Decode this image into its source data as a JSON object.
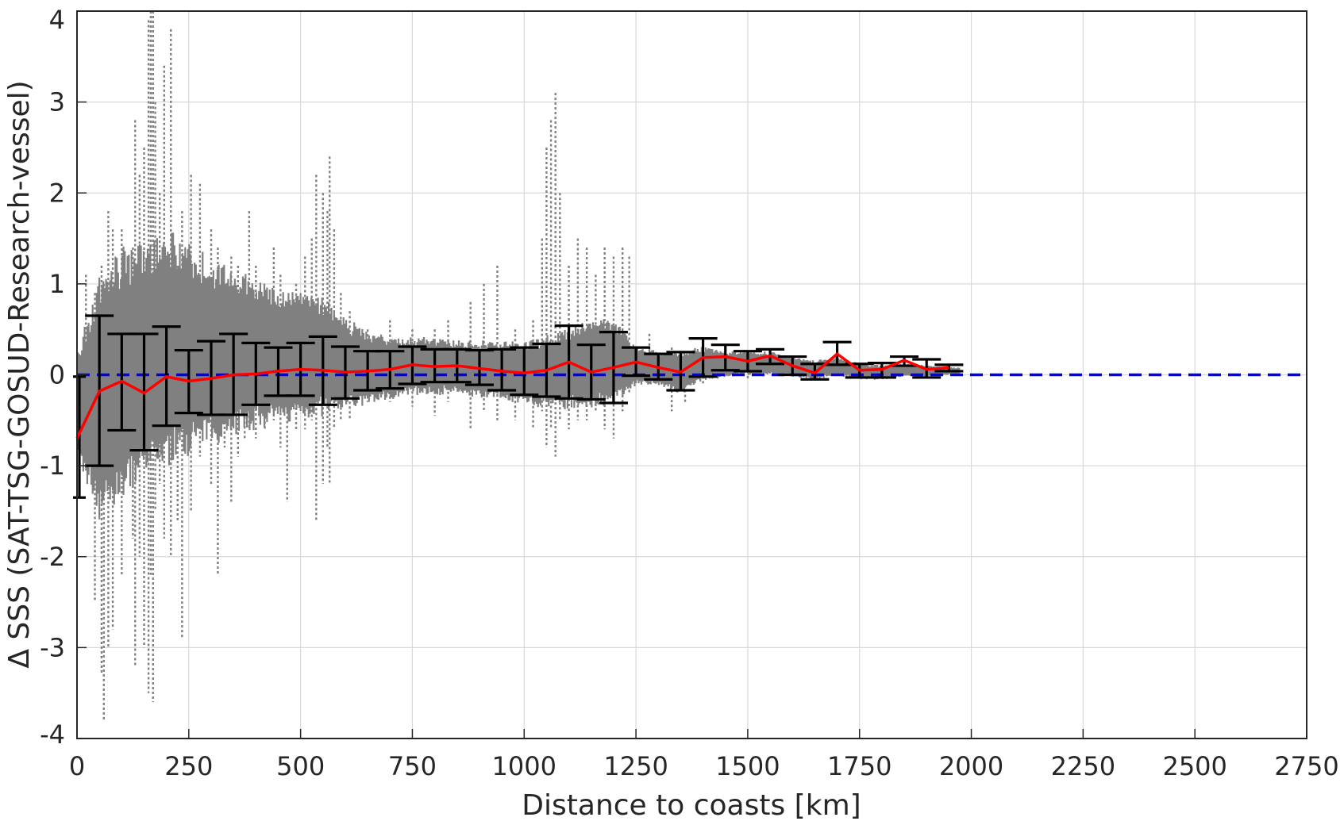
{
  "chart_data": {
    "type": "scatter",
    "xlabel": "Distance to coasts [km]",
    "ylabel": "Δ SSS (SAT-TSG-GOSUD-Research-vessel)",
    "xlim": [
      0,
      2750
    ],
    "ylim": [
      -4,
      4
    ],
    "xticks": [
      "0",
      "250",
      "500",
      "750",
      "1000",
      "1250",
      "1500",
      "1750",
      "2000",
      "2250",
      "2500",
      "2750"
    ],
    "yticks": [
      "4",
      "3",
      "2",
      "1",
      "0",
      "-1",
      "-2",
      "-3",
      "-4"
    ],
    "grid": true,
    "colors": {
      "scatter": "#808080",
      "mean_line": "#ff0000",
      "error_bars": "#000000",
      "zero_line": "#0000ee",
      "grid": "#d9d9d9"
    },
    "scatter_envelope": {
      "description_units": "x in km, y in psu",
      "x": [
        0,
        50,
        100,
        150,
        200,
        250,
        300,
        350,
        400,
        450,
        500,
        550,
        600,
        650,
        700,
        750,
        800,
        850,
        900,
        950,
        1000,
        1050,
        1100,
        1150,
        1200,
        1250,
        1300,
        1350,
        1400,
        1450,
        1500,
        1550,
        1600,
        1650,
        1700,
        1750,
        1800,
        1850,
        1900,
        1950
      ],
      "upper": [
        0.2,
        1.1,
        1.3,
        1.4,
        1.5,
        1.4,
        1.2,
        1.1,
        1.0,
        0.9,
        0.9,
        0.8,
        0.6,
        0.45,
        0.4,
        0.4,
        0.4,
        0.35,
        0.35,
        0.35,
        0.35,
        0.4,
        0.5,
        0.6,
        0.6,
        0.3,
        0.25,
        0.25,
        0.3,
        0.25,
        0.25,
        0.25,
        0.2,
        0.15,
        0.2,
        0.12,
        0.1,
        0.12,
        0.1,
        0.08
      ],
      "lower": [
        -0.9,
        -1.5,
        -1.3,
        -1.1,
        -0.9,
        -0.8,
        -0.7,
        -0.6,
        -0.55,
        -0.5,
        -0.45,
        -0.4,
        -0.35,
        -0.3,
        -0.25,
        -0.2,
        -0.2,
        -0.2,
        -0.22,
        -0.25,
        -0.3,
        -0.35,
        -0.35,
        -0.35,
        -0.3,
        -0.1,
        -0.1,
        -0.2,
        -0.05,
        -0.02,
        0.0,
        0.0,
        -0.02,
        -0.05,
        0.0,
        -0.05,
        -0.05,
        -0.02,
        -0.02,
        0.0
      ],
      "spikes": [
        {
          "x": 20,
          "y0": -0.8,
          "y1": 1.1
        },
        {
          "x": 40,
          "y0": -2.5,
          "y1": 0.9
        },
        {
          "x": 55,
          "y0": -3.3,
          "y1": 1.2
        },
        {
          "x": 60,
          "y0": -3.8,
          "y1": 1.0
        },
        {
          "x": 70,
          "y0": -3.0,
          "y1": 1.8
        },
        {
          "x": 80,
          "y0": -2.8,
          "y1": 1.6
        },
        {
          "x": 100,
          "y0": -2.2,
          "y1": 1.6
        },
        {
          "x": 125,
          "y0": -1.8,
          "y1": 1.4
        },
        {
          "x": 130,
          "y0": -3.2,
          "y1": 2.8
        },
        {
          "x": 140,
          "y0": -2.0,
          "y1": 2.2
        },
        {
          "x": 150,
          "y0": -3.0,
          "y1": 2.5
        },
        {
          "x": 160,
          "y0": -3.5,
          "y1": 3.9
        },
        {
          "x": 165,
          "y0": -2.2,
          "y1": 4.0
        },
        {
          "x": 170,
          "y0": -3.6,
          "y1": 4.0
        },
        {
          "x": 175,
          "y0": -1.5,
          "y1": 3.0
        },
        {
          "x": 185,
          "y0": -1.2,
          "y1": 2.0
        },
        {
          "x": 195,
          "y0": -1.8,
          "y1": 3.4
        },
        {
          "x": 210,
          "y0": -2.0,
          "y1": 3.8
        },
        {
          "x": 225,
          "y0": -1.6,
          "y1": 1.2
        },
        {
          "x": 235,
          "y0": -2.9,
          "y1": 1.8
        },
        {
          "x": 255,
          "y0": -1.5,
          "y1": 2.2
        },
        {
          "x": 275,
          "y0": -0.9,
          "y1": 2.1
        },
        {
          "x": 300,
          "y0": -1.2,
          "y1": 1.6
        },
        {
          "x": 315,
          "y0": -2.2,
          "y1": 1.4
        },
        {
          "x": 330,
          "y0": -0.8,
          "y1": 1.0
        },
        {
          "x": 345,
          "y0": -1.4,
          "y1": 1.3
        },
        {
          "x": 360,
          "y0": -0.9,
          "y1": 1.2
        },
        {
          "x": 375,
          "y0": -0.7,
          "y1": 0.9
        },
        {
          "x": 385,
          "y0": -0.6,
          "y1": 1.8
        },
        {
          "x": 400,
          "y0": -0.7,
          "y1": 1.2
        },
        {
          "x": 420,
          "y0": -0.6,
          "y1": 0.9
        },
        {
          "x": 440,
          "y0": -0.5,
          "y1": 1.4
        },
        {
          "x": 455,
          "y0": -0.8,
          "y1": 1.1
        },
        {
          "x": 470,
          "y0": -1.4,
          "y1": 0.8
        },
        {
          "x": 490,
          "y0": -0.6,
          "y1": 1.0
        },
        {
          "x": 510,
          "y0": -0.6,
          "y1": 1.3
        },
        {
          "x": 525,
          "y0": -0.5,
          "y1": 1.5
        },
        {
          "x": 535,
          "y0": -1.6,
          "y1": 2.2
        },
        {
          "x": 550,
          "y0": -1.2,
          "y1": 2.0
        },
        {
          "x": 560,
          "y0": -0.8,
          "y1": 1.8
        },
        {
          "x": 565,
          "y0": -1.2,
          "y1": 2.4
        },
        {
          "x": 575,
          "y0": -0.6,
          "y1": 1.6
        },
        {
          "x": 590,
          "y0": -0.5,
          "y1": 0.9
        },
        {
          "x": 610,
          "y0": -0.5,
          "y1": 0.7
        },
        {
          "x": 650,
          "y0": -0.3,
          "y1": 0.5
        },
        {
          "x": 700,
          "y0": -0.3,
          "y1": 0.6
        },
        {
          "x": 750,
          "y0": -0.35,
          "y1": 0.5
        },
        {
          "x": 800,
          "y0": -0.45,
          "y1": 0.5
        },
        {
          "x": 830,
          "y0": -0.3,
          "y1": 0.6
        },
        {
          "x": 880,
          "y0": -0.6,
          "y1": 0.8
        },
        {
          "x": 910,
          "y0": -0.4,
          "y1": 1.0
        },
        {
          "x": 940,
          "y0": -0.5,
          "y1": 1.2
        },
        {
          "x": 980,
          "y0": -0.5,
          "y1": 0.5
        },
        {
          "x": 1020,
          "y0": -0.6,
          "y1": 0.6
        },
        {
          "x": 1040,
          "y0": -0.4,
          "y1": 1.5
        },
        {
          "x": 1050,
          "y0": -0.8,
          "y1": 2.5
        },
        {
          "x": 1060,
          "y0": -0.6,
          "y1": 2.8
        },
        {
          "x": 1070,
          "y0": -0.9,
          "y1": 3.1
        },
        {
          "x": 1080,
          "y0": -0.5,
          "y1": 2.0
        },
        {
          "x": 1100,
          "y0": -0.6,
          "y1": 1.2
        },
        {
          "x": 1120,
          "y0": -0.5,
          "y1": 1.5
        },
        {
          "x": 1140,
          "y0": -0.5,
          "y1": 1.4
        },
        {
          "x": 1160,
          "y0": -0.4,
          "y1": 1.1
        },
        {
          "x": 1180,
          "y0": -0.6,
          "y1": 1.4
        },
        {
          "x": 1200,
          "y0": -0.7,
          "y1": 1.3
        },
        {
          "x": 1220,
          "y0": -0.4,
          "y1": 1.4
        },
        {
          "x": 1235,
          "y0": -0.2,
          "y1": 1.3
        },
        {
          "x": 1280,
          "y0": -0.1,
          "y1": 0.45
        },
        {
          "x": 1330,
          "y0": -0.4,
          "y1": 0.3
        },
        {
          "x": 1360,
          "y0": -0.3,
          "y1": 0.2
        },
        {
          "x": 1400,
          "y0": -0.1,
          "y1": 0.35
        },
        {
          "x": 1450,
          "y0": 0.0,
          "y1": 0.3
        },
        {
          "x": 1500,
          "y0": -0.05,
          "y1": 0.25
        }
      ]
    },
    "mean_series": {
      "x": [
        0,
        50,
        100,
        150,
        200,
        250,
        300,
        350,
        400,
        450,
        500,
        550,
        600,
        650,
        700,
        750,
        800,
        850,
        900,
        950,
        1000,
        1050,
        1100,
        1150,
        1200,
        1250,
        1300,
        1350,
        1400,
        1450,
        1500,
        1550,
        1600,
        1650,
        1700,
        1750,
        1800,
        1850,
        1900,
        1950
      ],
      "y": [
        -0.7,
        -0.18,
        -0.07,
        -0.2,
        -0.02,
        -0.07,
        -0.04,
        0.0,
        0.01,
        0.04,
        0.06,
        0.05,
        0.03,
        0.04,
        0.06,
        0.11,
        0.09,
        0.1,
        0.07,
        0.04,
        0.02,
        0.05,
        0.14,
        0.03,
        0.08,
        0.14,
        0.08,
        0.03,
        0.19,
        0.2,
        0.15,
        0.21,
        0.1,
        0.02,
        0.23,
        0.05,
        0.06,
        0.16,
        0.06,
        0.08
      ]
    },
    "error_bars": {
      "x": [
        0,
        50,
        100,
        150,
        200,
        250,
        300,
        350,
        400,
        450,
        500,
        550,
        600,
        650,
        700,
        750,
        800,
        850,
        900,
        950,
        1000,
        1050,
        1100,
        1150,
        1200,
        1250,
        1300,
        1350,
        1400,
        1450,
        1500,
        1550,
        1600,
        1650,
        1700,
        1750,
        1800,
        1850,
        1900,
        1950
      ],
      "upper": [
        -0.02,
        0.65,
        0.45,
        0.45,
        0.53,
        0.27,
        0.37,
        0.45,
        0.35,
        0.3,
        0.35,
        0.42,
        0.31,
        0.26,
        0.26,
        0.31,
        0.28,
        0.28,
        0.27,
        0.28,
        0.3,
        0.34,
        0.54,
        0.33,
        0.47,
        0.3,
        0.23,
        0.25,
        0.4,
        0.33,
        0.26,
        0.28,
        0.2,
        0.12,
        0.36,
        0.12,
        0.13,
        0.2,
        0.17,
        0.11
      ],
      "lower": [
        -1.35,
        -1.0,
        -0.61,
        -0.83,
        -0.56,
        -0.42,
        -0.44,
        -0.44,
        -0.33,
        -0.23,
        -0.23,
        -0.33,
        -0.26,
        -0.17,
        -0.15,
        -0.1,
        -0.08,
        -0.08,
        -0.11,
        -0.17,
        -0.22,
        -0.24,
        -0.26,
        -0.27,
        -0.31,
        -0.01,
        -0.05,
        -0.17,
        -0.02,
        0.05,
        0.04,
        0.12,
        0.0,
        -0.05,
        0.11,
        -0.03,
        -0.03,
        0.1,
        -0.03,
        0.04
      ]
    },
    "reference_line": {
      "y": 0,
      "style": "dashed"
    }
  }
}
